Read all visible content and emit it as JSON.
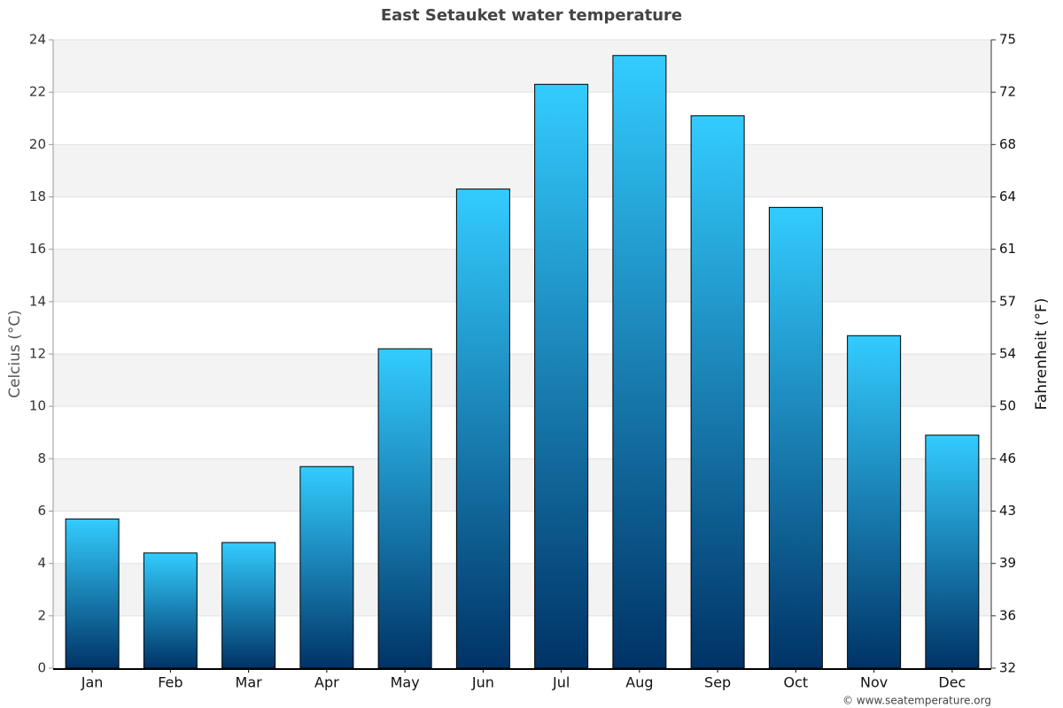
{
  "chart_data": {
    "type": "bar",
    "title": "East Setauket water temperature",
    "categories": [
      "Jan",
      "Feb",
      "Mar",
      "Apr",
      "May",
      "Jun",
      "Jul",
      "Aug",
      "Sep",
      "Oct",
      "Nov",
      "Dec"
    ],
    "values": [
      5.7,
      4.4,
      4.8,
      7.7,
      12.2,
      18.3,
      22.3,
      23.4,
      21.1,
      17.6,
      12.7,
      8.9
    ],
    "color": [
      "#33ccff",
      "#003366"
    ],
    "ylabel": "Celcius (°C)",
    "y2label": "Fahrenheit (°F)",
    "ylim": [
      0,
      24
    ],
    "yticks": [
      0,
      2,
      4,
      6,
      8,
      10,
      12,
      14,
      16,
      18,
      20,
      22,
      24
    ],
    "y2lim": [
      32,
      75.2
    ],
    "y2ticks": [
      32,
      {
        "value": 35.6,
        "label": "36"
      },
      {
        "value": 39.2,
        "label": "39"
      },
      {
        "value": 42.8,
        "label": "43"
      },
      {
        "value": 46.4,
        "label": "46"
      },
      50,
      {
        "value": 53.6,
        "label": "54"
      },
      {
        "value": 57.2,
        "label": "57"
      },
      {
        "value": 60.8,
        "label": "61"
      },
      {
        "value": 64.4,
        "label": "64"
      },
      68,
      {
        "value": 71.6,
        "label": "72"
      },
      {
        "value": 75.2,
        "label": "75"
      }
    ],
    "grid": true,
    "credit": "© www.seatemperature.org"
  }
}
